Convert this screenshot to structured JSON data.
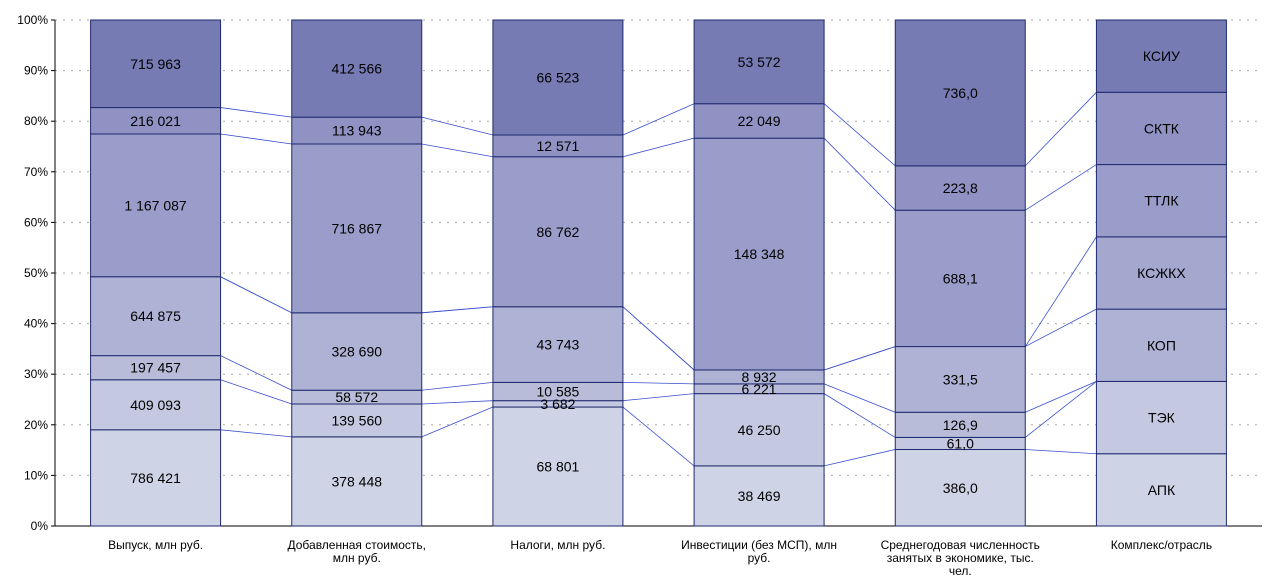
{
  "colors": {
    "segments": [
      "#cfd3e6",
      "#c4c8e0",
      "#b8bcd9",
      "#aeb2d4",
      "#a4a8cf",
      "#9a9dca",
      "#8f92c3",
      "#767bb4"
    ],
    "stroke": "#1f2a6e",
    "connector": "#3a4fd0",
    "grid": "#aaaaaa"
  },
  "chart_data": {
    "type": "bar",
    "stacked": "percent",
    "ylim": [
      0,
      100
    ],
    "yticks": [
      "0%",
      "10%",
      "20%",
      "30%",
      "40%",
      "50%",
      "60%",
      "70%",
      "80%",
      "90%",
      "100%"
    ],
    "categories": [
      [
        "Выпуск, млн руб."
      ],
      [
        "Добавленная стоимость,",
        "млн руб."
      ],
      [
        "Налоги, млн руб."
      ],
      [
        "Инвестиции (без МСП), млн",
        "руб."
      ],
      [
        "Среднегодовая численность",
        "занятых в экономике, тыс.",
        "чел."
      ],
      [
        "Комплекс/отрасль"
      ]
    ],
    "series": [
      {
        "name": "АПК",
        "values": [
          786421,
          378448,
          68801,
          38469,
          386.0,
          1
        ],
        "labels": [
          "786 421",
          "378 448",
          "68 801",
          "38 469",
          "386,0",
          "АПК"
        ]
      },
      {
        "name": "ТЭК",
        "values": [
          409093,
          139560,
          3682,
          46250,
          61.0,
          1
        ],
        "labels": [
          "409 093",
          "139 560",
          "3 682",
          "46 250",
          "61,0",
          "ТЭК"
        ]
      },
      {
        "name": "",
        "values": [
          197457,
          58572,
          10585,
          6221,
          126.9,
          0
        ],
        "labels": [
          "197 457",
          "58 572",
          "10 585",
          "6 221",
          "126,9",
          ""
        ]
      },
      {
        "name": "КОП",
        "values": [
          644875,
          328690,
          43743,
          8932,
          331.5,
          1
        ],
        "labels": [
          "644 875",
          "328 690",
          "43 743",
          "8 932",
          "331,5",
          "КОП"
        ]
      },
      {
        "name": "КСЖКХ",
        "values": [
          0,
          0,
          0,
          0,
          0,
          1
        ],
        "labels": [
          "",
          "",
          "",
          "",
          "",
          "КСЖКХ"
        ]
      },
      {
        "name": "ТТЛК",
        "values": [
          1167087,
          716867,
          86762,
          148348,
          688.1,
          1
        ],
        "labels": [
          "1 167 087",
          "716 867",
          "86 762",
          "148 348",
          "688,1",
          "ТТЛК"
        ]
      },
      {
        "name": "СКТК",
        "values": [
          216021,
          113943,
          12571,
          22049,
          223.8,
          1
        ],
        "labels": [
          "216 021",
          "113 943",
          "12 571",
          "22 049",
          "223,8",
          "СКТК"
        ]
      },
      {
        "name": "КСИУ",
        "values": [
          715963,
          412566,
          66523,
          53572,
          736.0,
          1
        ],
        "labels": [
          "715 963",
          "412 566",
          "66 523",
          "53 572",
          "736,0",
          "КСИУ"
        ]
      }
    ]
  }
}
